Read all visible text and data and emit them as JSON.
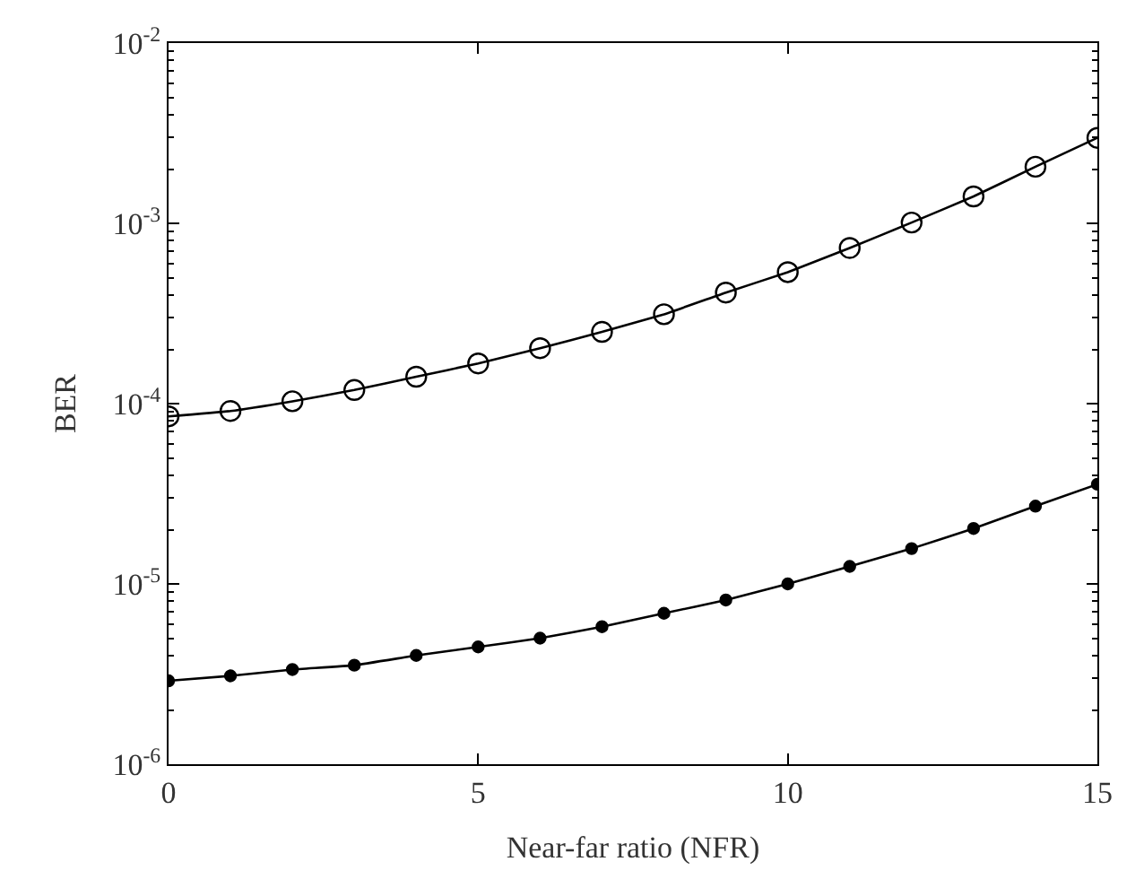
{
  "chart_data": {
    "type": "line",
    "xlabel": "Near-far ratio (NFR)",
    "ylabel": "BER",
    "x": [
      0,
      1,
      2,
      3,
      4,
      5,
      6,
      7,
      8,
      9,
      10,
      11,
      12,
      13,
      14,
      15
    ],
    "series": [
      {
        "color": "#000000",
        "marker": "circle-open",
        "values": [
          8.5e-05,
          9.1e-05,
          0.000103,
          0.000119,
          0.000141,
          0.000167,
          0.000203,
          0.00025,
          0.000313,
          0.000413,
          0.000536,
          0.00073,
          0.00101,
          0.00141,
          0.00206,
          0.00298
        ]
      },
      {
        "color": "#000000",
        "marker": "circle",
        "values": [
          2.9e-06,
          3.09e-06,
          3.35e-06,
          3.54e-06,
          4.01e-06,
          4.47e-06,
          5e-06,
          5.79e-06,
          6.87e-06,
          8.14e-06,
          1e-05,
          1.25e-05,
          1.57e-05,
          2.03e-05,
          2.7e-05,
          3.57e-05
        ]
      }
    ],
    "log": "y",
    "line_style": "solid",
    "xlim": [
      0,
      15
    ],
    "xticks": [
      0,
      5,
      10,
      15
    ],
    "ylim": [
      1e-06,
      0.01
    ],
    "yticks": [
      {
        "value": 1e-06,
        "label": "10$^{-6}$"
      },
      {
        "value": 1e-05,
        "label": "10$^{-5}$"
      },
      {
        "value": 0.0001,
        "label": "10$^{-4}$"
      },
      {
        "value": 0.001,
        "label": "10$^{-3}$"
      },
      {
        "value": 0.01,
        "label": "10$^{-2}$"
      }
    ]
  }
}
